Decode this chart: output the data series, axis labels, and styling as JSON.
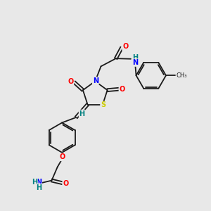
{
  "bg_color": "#e8e8e8",
  "bond_color": "#1a1a1a",
  "atom_colors": {
    "O": "#ff0000",
    "N": "#0000ff",
    "S": "#cccc00",
    "H": "#008080",
    "C": "#1a1a1a"
  },
  "figsize": [
    3.0,
    3.0
  ],
  "dpi": 100,
  "lw": 1.3,
  "fs": 7.0
}
